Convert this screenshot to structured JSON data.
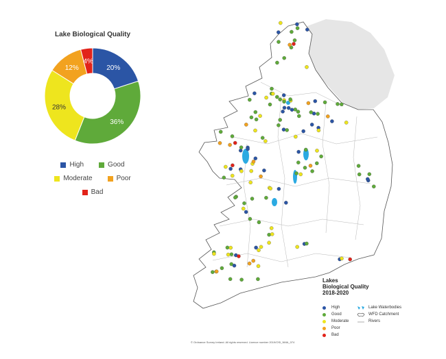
{
  "chart_data": [
    {
      "type": "pie",
      "title": "Lake Biological Quality",
      "slices": [
        {
          "label": "High",
          "value": 20,
          "text": "20%",
          "color": "#2B55A5"
        },
        {
          "label": "Good",
          "value": 36,
          "text": "36%",
          "color": "#5FAA3A"
        },
        {
          "label": "Moderate",
          "value": 28,
          "text": "28%",
          "color": "#EEE51E"
        },
        {
          "label": "Poor",
          "value": 12,
          "text": "12%",
          "color": "#F2A21F"
        },
        {
          "label": "Bad",
          "value": 4,
          "text": "4%",
          "color": "#E2231A"
        }
      ],
      "legend": [
        "High",
        "Good",
        "Moderate",
        "Poor",
        "Bad"
      ]
    }
  ],
  "map": {
    "title_lines": [
      "Lakes",
      "Biological Quality",
      "2018-2020"
    ],
    "legend_left": [
      {
        "label": "High",
        "color": "#2B55A5"
      },
      {
        "label": "Good",
        "color": "#5FAA3A"
      },
      {
        "label": "Moderate",
        "color": "#EEE51E"
      },
      {
        "label": "Poor",
        "color": "#F2A21F"
      },
      {
        "label": "Bad",
        "color": "#E2231A"
      }
    ],
    "legend_right": [
      "Lake Waterbodies",
      "WFD Catchment",
      "Rivers"
    ],
    "copyright": "© Ordnance Survey Ireland. All rights reserved. Licence number 2019/OSI_NMA_074"
  }
}
